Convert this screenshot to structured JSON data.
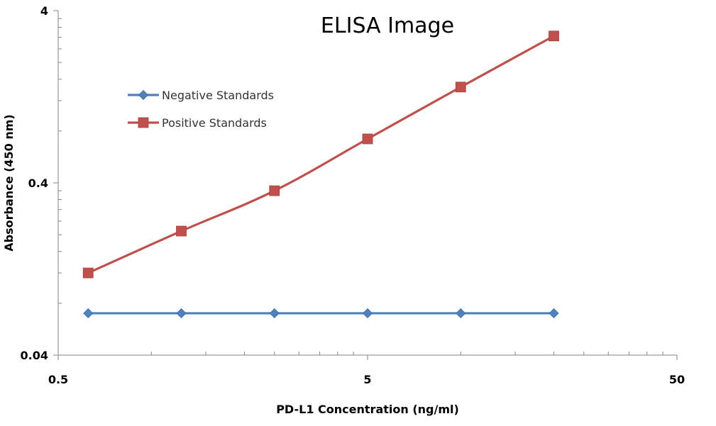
{
  "chart_data": {
    "type": "line",
    "title": "ELISA Image",
    "xlabel": "PD-L1 Concentration  (ng/ml)",
    "ylabel": "Absorbance (450 nm)",
    "x_scale": "log",
    "y_scale": "log",
    "xlim": [
      0.5,
      50
    ],
    "ylim": [
      0.04,
      4
    ],
    "x_ticks": [
      "0.5",
      "5",
      "50"
    ],
    "y_ticks": [
      "0.04",
      "0.4",
      "4"
    ],
    "grid": false,
    "legend_position": "top-left",
    "series": [
      {
        "name": "Negative Standards",
        "color": "#4f81bd",
        "marker": "diamond",
        "x": [
          0.625,
          1.25,
          2.5,
          5,
          10,
          20
        ],
        "y": [
          0.07,
          0.07,
          0.07,
          0.07,
          0.07,
          0.07
        ]
      },
      {
        "name": "Positive Standards",
        "color": "#c0504d",
        "marker": "square",
        "x": [
          0.625,
          1.25,
          2.5,
          5,
          10,
          20
        ],
        "y": [
          0.12,
          0.21,
          0.36,
          0.72,
          1.44,
          2.85
        ]
      }
    ]
  }
}
